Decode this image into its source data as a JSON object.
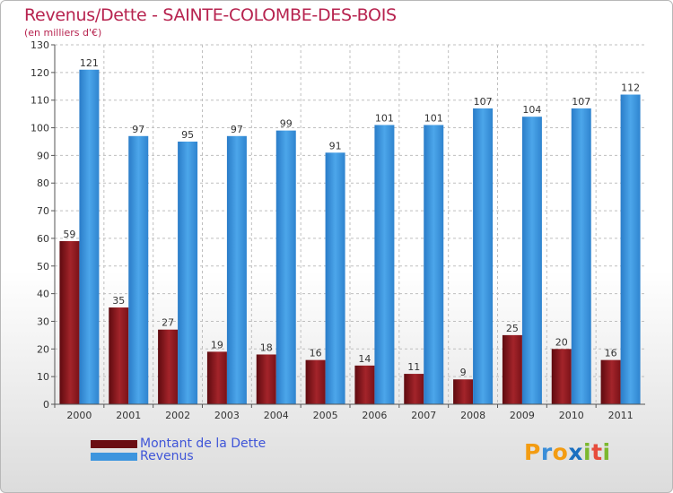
{
  "header": {
    "title": "Revenus/Dette - SAINTE-COLOMBE-DES-BOIS",
    "subtitle": "(en milliers d'€)"
  },
  "chart_data": {
    "type": "bar",
    "title": "Revenus/Dette - SAINTE-COLOMBE-DES-BOIS",
    "subtitle": "(en milliers d'€)",
    "xlabel": "",
    "ylabel": "",
    "categories": [
      "2000",
      "2001",
      "2002",
      "2003",
      "2004",
      "2005",
      "2006",
      "2007",
      "2008",
      "2009",
      "2010",
      "2011"
    ],
    "series": [
      {
        "name": "Montant de la Dette",
        "values": [
          59,
          35,
          27,
          19,
          18,
          16,
          14,
          11,
          9,
          25,
          20,
          16
        ],
        "color": "#8b1a1f"
      },
      {
        "name": "Revenus",
        "values": [
          121,
          97,
          95,
          97,
          99,
          91,
          101,
          101,
          107,
          104,
          107,
          112
        ],
        "color": "#3d95de"
      }
    ],
    "ylim": [
      0,
      130
    ],
    "yticks": [
      0,
      10,
      20,
      30,
      40,
      50,
      60,
      70,
      80,
      90,
      100,
      110,
      120,
      130
    ],
    "grid": true,
    "data_labels": true,
    "legend_position": "bottom-left"
  },
  "legend": {
    "items": [
      {
        "label": "Montant de la Dette",
        "color": "#6b0d12"
      },
      {
        "label": "Revenus",
        "color": "#3d95de"
      }
    ]
  },
  "logo": {
    "letters": [
      {
        "ch": "P",
        "color": "#f39c12"
      },
      {
        "ch": "r",
        "color": "#3b8ed8"
      },
      {
        "ch": "o",
        "color": "#f39c12"
      },
      {
        "ch": "x",
        "color": "#1a6fc0"
      },
      {
        "ch": "i",
        "color": "#7cb82f"
      },
      {
        "ch": "t",
        "color": "#e74c3c"
      },
      {
        "ch": "i",
        "color": "#7cb82f"
      }
    ]
  }
}
